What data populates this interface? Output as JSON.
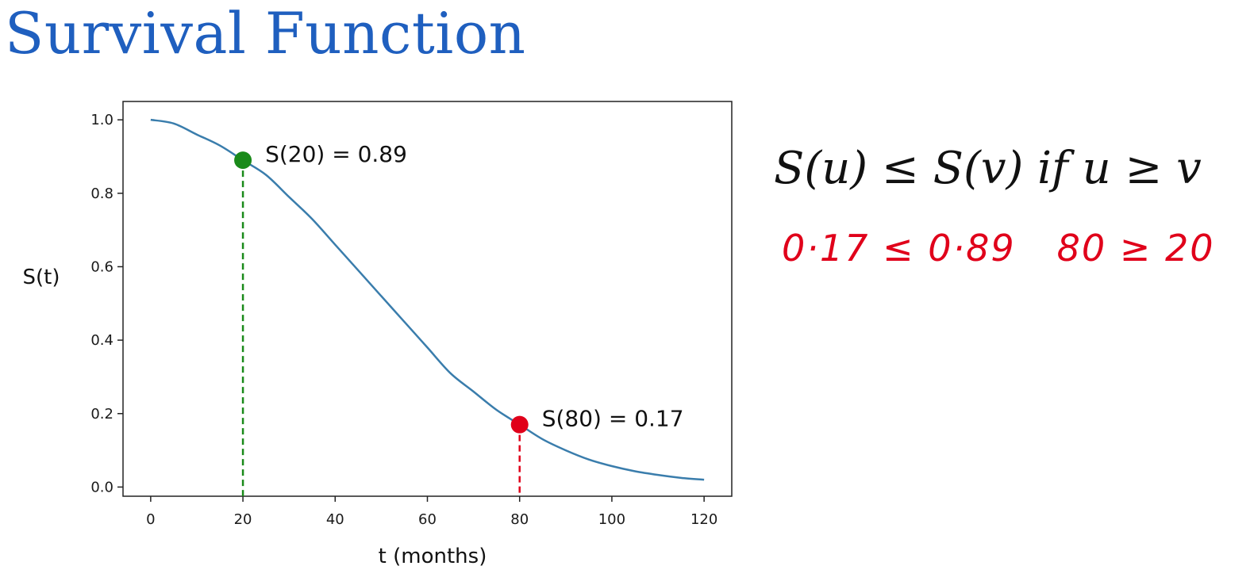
{
  "slide": {
    "title": "Survival Function",
    "formula": "S(u) ≤ S(v) if u ≥ v",
    "handwritten_note": {
      "left": "0·17 ≤ 0·89",
      "right": "80 ≥ 20",
      "color": "#e0001a"
    }
  },
  "chart_data": {
    "type": "line",
    "title": "",
    "xlabel": "t (months)",
    "ylabel": "S(t)",
    "xlim": [
      -6,
      126
    ],
    "ylim": [
      -0.025,
      1.05
    ],
    "xticks": [
      0,
      20,
      40,
      60,
      80,
      100,
      120
    ],
    "yticks": [
      0.0,
      0.2,
      0.4,
      0.6,
      0.8,
      1.0
    ],
    "ytick_labels": [
      "0.0",
      "0.2",
      "0.4",
      "0.6",
      "0.8",
      "1.0"
    ],
    "grid": false,
    "series": [
      {
        "color": "#3a7dac",
        "x": [
          0,
          5,
          10,
          15,
          20,
          25,
          30,
          35,
          40,
          45,
          50,
          55,
          60,
          65,
          70,
          75,
          80,
          85,
          90,
          95,
          100,
          105,
          110,
          115,
          120
        ],
        "y": [
          1.0,
          0.99,
          0.96,
          0.93,
          0.89,
          0.85,
          0.79,
          0.73,
          0.66,
          0.59,
          0.52,
          0.45,
          0.38,
          0.31,
          0.26,
          0.21,
          0.17,
          0.13,
          0.1,
          0.075,
          0.057,
          0.043,
          0.033,
          0.025,
          0.02
        ]
      }
    ],
    "annotations": [
      {
        "x": 20,
        "y": 0.89,
        "label": "S(20) = 0.89",
        "color": "#1a8a1a"
      },
      {
        "x": 80,
        "y": 0.17,
        "label": "S(80) = 0.17",
        "color": "#e0001a"
      }
    ]
  }
}
